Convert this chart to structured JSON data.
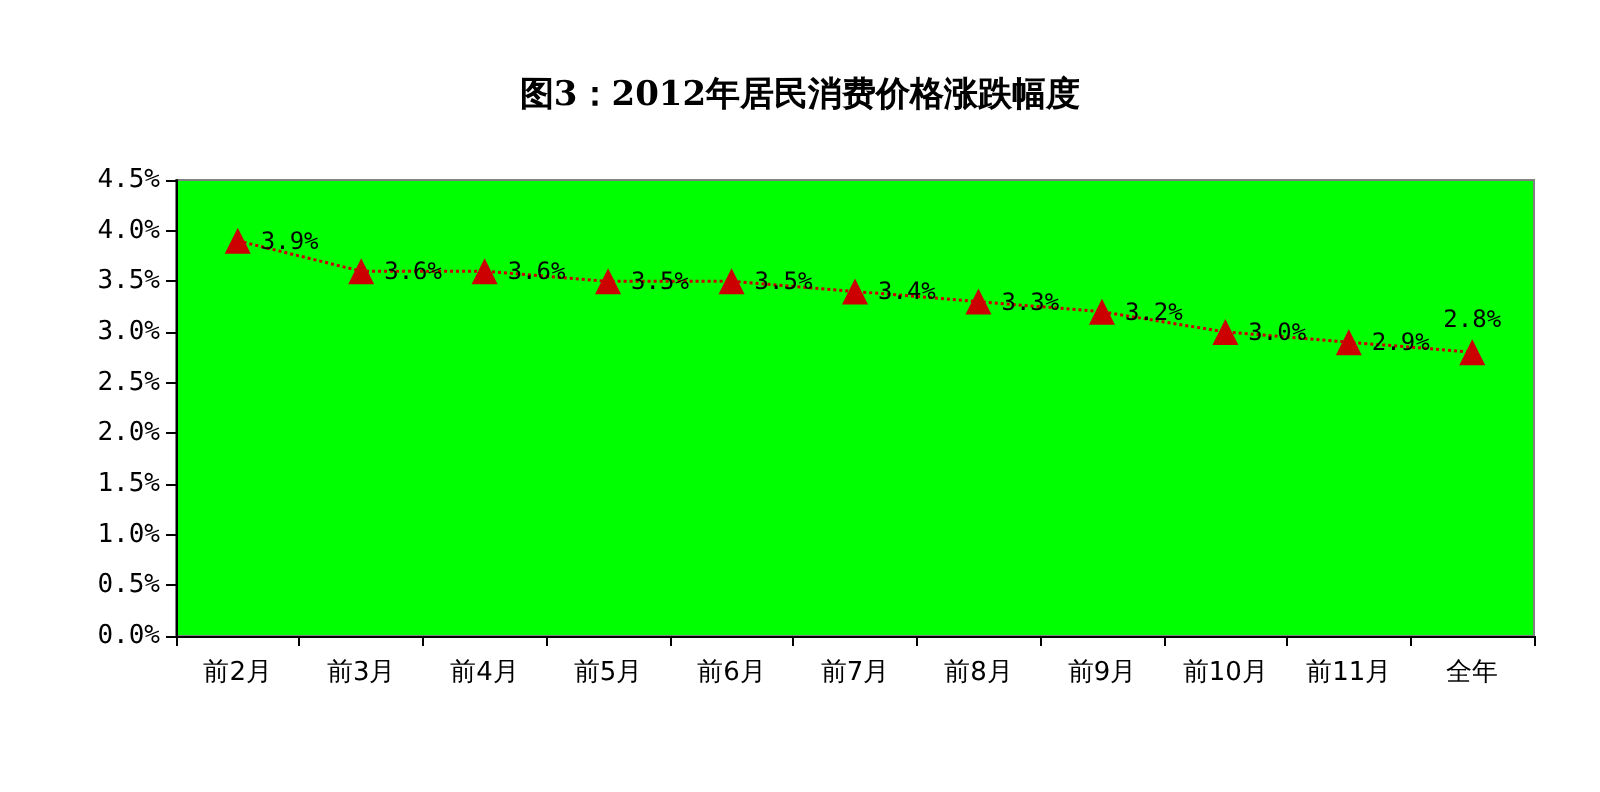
{
  "chart_data": {
    "type": "line",
    "title": "图3：2012年居民消费价格涨跌幅度",
    "categories": [
      "前2月",
      "前3月",
      "前4月",
      "前5月",
      "前6月",
      "前7月",
      "前8月",
      "前9月",
      "前10月",
      "前11月",
      "全年"
    ],
    "series": [
      {
        "color": "#cc0000",
        "values": [
          3.9,
          3.6,
          3.6,
          3.5,
          3.5,
          3.4,
          3.3,
          3.2,
          3.0,
          2.9,
          2.8
        ],
        "value_labels": [
          "3.9%",
          "3.6%",
          "3.6%",
          "3.5%",
          "3.5%",
          "3.4%",
          "3.3%",
          "3.2%",
          "3.0%",
          "2.9%",
          "2.8%"
        ]
      }
    ],
    "ylim": [
      0,
      4.5
    ],
    "yticks": [
      {
        "value": 0,
        "label": "0.0%"
      },
      {
        "value": 0.5,
        "label": "0.5%"
      },
      {
        "value": 1,
        "label": "1.0%"
      },
      {
        "value": 1.5,
        "label": "1.5%"
      },
      {
        "value": 2,
        "label": "2.0%"
      },
      {
        "value": 2.5,
        "label": "2.5%"
      },
      {
        "value": 3,
        "label": "3.0%"
      },
      {
        "value": 3.5,
        "label": "3.5%"
      },
      {
        "value": 4,
        "label": "4.0%"
      },
      {
        "value": 4.5,
        "label": "4.5%"
      }
    ],
    "marker": "triangle",
    "line_style": "dotted"
  }
}
